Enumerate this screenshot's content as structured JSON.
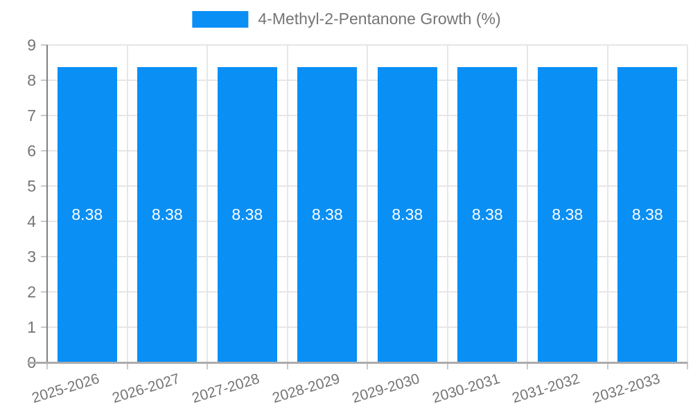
{
  "legend": {
    "label": "4-Methyl-2-Pentanone Growth (%)"
  },
  "chart_data": {
    "type": "bar",
    "title": "",
    "categories": [
      "2025-2026",
      "2026-2027",
      "2027-2028",
      "2028-2029",
      "2029-2030",
      "2030-2031",
      "2031-2032",
      "2032-2033"
    ],
    "values": [
      8.38,
      8.38,
      8.38,
      8.38,
      8.38,
      8.38,
      8.38,
      8.38
    ],
    "bar_labels": [
      "8.38",
      "8.38",
      "8.38",
      "8.38",
      "8.38",
      "8.38",
      "8.38",
      "8.38"
    ],
    "legend_entries": [
      "4-Methyl-2-Pentanone Growth (%)"
    ],
    "legend_position": "top-center",
    "xlabel": "",
    "ylabel": "",
    "ylim": [
      0,
      9
    ],
    "y_ticks": [
      "0",
      "1",
      "2",
      "3",
      "4",
      "5",
      "6",
      "7",
      "8",
      "9"
    ],
    "grid": true,
    "colors": {
      "bar": "#0a8ff5",
      "bar_label_text": "#ffffff",
      "grid_line": "#e6e6e6",
      "y_axis_line": "#808080",
      "x_axis_line": "#ababab",
      "tick_mark": "#c9c9c9",
      "tick_text": "#757575",
      "legend_text": "#757575"
    }
  }
}
